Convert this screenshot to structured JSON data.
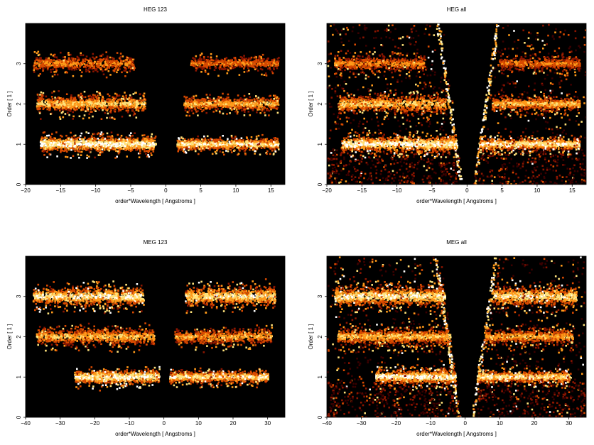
{
  "chart_data": [
    {
      "type": "heatmap",
      "title": "HEG 123",
      "xlabel": "order*Wavelength [ Angstroms ]",
      "ylabel": "Order [ 1 ]",
      "xlim": [
        -20,
        17
      ],
      "ylim": [
        0,
        4
      ],
      "xticks": [
        -20,
        -15,
        -10,
        -5,
        0,
        5,
        10,
        15
      ],
      "yticks": [
        0,
        1,
        2,
        3
      ],
      "background": "#000000",
      "colormap": [
        "#3a0000",
        "#8a1500",
        "#d84a00",
        "#ff9a1a",
        "#ffe27a",
        "#ffffff"
      ],
      "bands": [
        {
          "order": 1,
          "x_range": [
            -18,
            -1.5
          ],
          "intensity": 1.0,
          "spread": 0.08
        },
        {
          "order": 1,
          "x_range": [
            1.5,
            16
          ],
          "intensity": 0.9,
          "spread": 0.06
        },
        {
          "order": 2,
          "x_range": [
            -18.5,
            -3
          ],
          "intensity": 0.75,
          "spread": 0.09
        },
        {
          "order": 2,
          "x_range": [
            2.5,
            16
          ],
          "intensity": 0.7,
          "spread": 0.07
        },
        {
          "order": 3,
          "x_range": [
            -19,
            -4.5
          ],
          "intensity": 0.55,
          "spread": 0.08
        },
        {
          "order": 3,
          "x_range": [
            3.5,
            16
          ],
          "intensity": 0.5,
          "spread": 0.07
        }
      ],
      "background_noise": "none"
    },
    {
      "type": "heatmap",
      "title": "HEG all",
      "xlabel": "order*Wavelength [ Angstroms ]",
      "ylabel": "Order [ 1 ]",
      "xlim": [
        -20,
        17
      ],
      "ylim": [
        0,
        4
      ],
      "xticks": [
        -20,
        -15,
        -10,
        -5,
        0,
        5,
        10,
        15
      ],
      "yticks": [
        0,
        1,
        2,
        3
      ],
      "background": "#000000",
      "colormap": [
        "#3a0000",
        "#8a1500",
        "#d84a00",
        "#ff9a1a",
        "#ffe27a",
        "#ffffff"
      ],
      "bands": [
        {
          "order": 1,
          "x_range": [
            -18,
            -1.5
          ],
          "intensity": 1.0,
          "spread": 0.08
        },
        {
          "order": 1,
          "x_range": [
            1.5,
            16
          ],
          "intensity": 0.9,
          "spread": 0.06
        },
        {
          "order": 2,
          "x_range": [
            -18.5,
            -3
          ],
          "intensity": 0.75,
          "spread": 0.09
        },
        {
          "order": 2,
          "x_range": [
            3.5,
            16
          ],
          "intensity": 0.7,
          "spread": 0.07
        },
        {
          "order": 3,
          "x_range": [
            -19,
            -6
          ],
          "intensity": 0.55,
          "spread": 0.08
        },
        {
          "order": 3,
          "x_range": [
            4.5,
            16
          ],
          "intensity": 0.5,
          "spread": 0.07
        }
      ],
      "background_noise": "diffuse",
      "empty_wedge": "V-shaped gap around zero wavelength"
    },
    {
      "type": "heatmap",
      "title": "MEG 123",
      "xlabel": "order*Wavelength [ Angstroms ]",
      "ylabel": "Order [ 1 ]",
      "xlim": [
        -40,
        35
      ],
      "ylim": [
        0,
        4
      ],
      "xticks": [
        -40,
        -30,
        -20,
        -10,
        0,
        10,
        20,
        30
      ],
      "yticks": [
        0,
        1,
        2,
        3
      ],
      "background": "#000000",
      "colormap": [
        "#3a0000",
        "#8a1500",
        "#d84a00",
        "#ff9a1a",
        "#ffe27a",
        "#ffffff"
      ],
      "bands": [
        {
          "order": 1,
          "x_range": [
            -26,
            -1.5
          ],
          "intensity": 1.0,
          "spread": 0.07
        },
        {
          "order": 1,
          "x_range": [
            1.5,
            30
          ],
          "intensity": 0.9,
          "spread": 0.06
        },
        {
          "order": 2,
          "x_range": [
            -37,
            -3
          ],
          "intensity": 0.7,
          "spread": 0.09
        },
        {
          "order": 2,
          "x_range": [
            3,
            31
          ],
          "intensity": 0.65,
          "spread": 0.08
        },
        {
          "order": 3,
          "x_range": [
            -38,
            -6
          ],
          "intensity": 0.9,
          "spread": 0.1
        },
        {
          "order": 3,
          "x_range": [
            6,
            32
          ],
          "intensity": 0.85,
          "spread": 0.1
        }
      ],
      "background_noise": "none"
    },
    {
      "type": "heatmap",
      "title": "MEG all",
      "xlabel": "order*Wavelength [ Angstroms ]",
      "ylabel": "Order [ 1 ]",
      "xlim": [
        -40,
        35
      ],
      "ylim": [
        0,
        4
      ],
      "xticks": [
        -40,
        -30,
        -20,
        -10,
        0,
        10,
        20,
        30
      ],
      "yticks": [
        0,
        1,
        2,
        3
      ],
      "background": "#000000",
      "colormap": [
        "#3a0000",
        "#8a1500",
        "#d84a00",
        "#ff9a1a",
        "#ffe27a",
        "#ffffff"
      ],
      "bands": [
        {
          "order": 1,
          "x_range": [
            -26,
            -1.5
          ],
          "intensity": 1.0,
          "spread": 0.07
        },
        {
          "order": 1,
          "x_range": [
            1.5,
            30
          ],
          "intensity": 0.9,
          "spread": 0.06
        },
        {
          "order": 2,
          "x_range": [
            -37,
            -3
          ],
          "intensity": 0.7,
          "spread": 0.09
        },
        {
          "order": 2,
          "x_range": [
            3,
            31
          ],
          "intensity": 0.65,
          "spread": 0.08
        },
        {
          "order": 3,
          "x_range": [
            -38,
            -6
          ],
          "intensity": 0.9,
          "spread": 0.1
        },
        {
          "order": 3,
          "x_range": [
            6,
            32
          ],
          "intensity": 0.85,
          "spread": 0.1
        }
      ],
      "background_noise": "diffuse",
      "empty_wedge": "V-shaped gap around zero wavelength"
    }
  ]
}
